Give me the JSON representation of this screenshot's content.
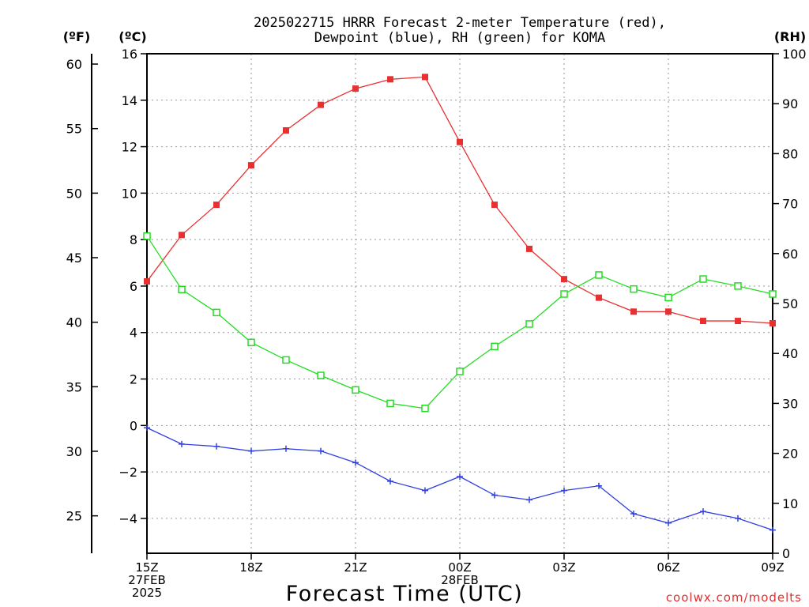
{
  "chart_data": {
    "type": "line",
    "title_lines": [
      "2025022715 HRRR Forecast 2-meter Temperature (red),",
      "Dewpoint (blue), RH (green) for KOMA"
    ],
    "xlabel": "Forecast Time (UTC)",
    "unit_labels": {
      "fahrenheit": "(ºF)",
      "celsius": "(ºC)",
      "rh": "(RH)"
    },
    "credit": "coolwx.com/modelts",
    "x_hours": [
      0,
      1,
      2,
      3,
      4,
      5,
      6,
      7,
      8,
      9,
      10,
      11,
      12,
      13,
      14,
      15,
      16,
      17,
      18
    ],
    "x_ticks": [
      {
        "hour": 0,
        "lines": [
          "15Z",
          "27FEB",
          "2025"
        ]
      },
      {
        "hour": 3,
        "lines": [
          "18Z"
        ]
      },
      {
        "hour": 6,
        "lines": [
          "21Z"
        ]
      },
      {
        "hour": 9,
        "lines": [
          "00Z",
          "28FEB"
        ]
      },
      {
        "hour": 12,
        "lines": [
          "03Z"
        ]
      },
      {
        "hour": 15,
        "lines": [
          "06Z"
        ]
      },
      {
        "hour": 18,
        "lines": [
          "09Z"
        ]
      }
    ],
    "xlim": [
      0,
      18
    ],
    "celsius_axis": {
      "ylim": [
        -5.5,
        16
      ],
      "ticks": [
        16,
        14,
        12,
        10,
        8,
        6,
        4,
        2,
        0,
        -2,
        -4
      ]
    },
    "fahrenheit_axis": {
      "ticks": [
        60,
        55,
        50,
        45,
        40,
        35,
        30,
        25
      ]
    },
    "rh_axis": {
      "ylim": [
        0,
        100
      ],
      "ticks": [
        100,
        90,
        80,
        70,
        60,
        50,
        40,
        30,
        20,
        10,
        0
      ]
    },
    "grid": true,
    "series": [
      {
        "name": "Temperature",
        "color": "#e83030",
        "marker": "filled-square",
        "axis": "celsius",
        "values": [
          6.2,
          8.2,
          9.5,
          11.2,
          12.7,
          13.8,
          14.5,
          14.9,
          15.0,
          12.2,
          9.5,
          7.6,
          6.3,
          5.5,
          4.9,
          4.9,
          4.5,
          4.5,
          4.4
        ]
      },
      {
        "name": "Dewpoint",
        "color": "#3040e0",
        "marker": "plus",
        "axis": "celsius",
        "values": [
          -0.1,
          -0.8,
          -0.9,
          -1.1,
          -1.0,
          -1.1,
          -1.6,
          -2.4,
          -2.8,
          -2.2,
          -3.0,
          -3.2,
          -2.8,
          -2.6,
          -3.8,
          -4.2,
          -3.7,
          -4.0,
          -4.5
        ]
      },
      {
        "name": "RH",
        "color": "#22dd22",
        "marker": "open-square",
        "axis": "rh",
        "values": [
          63.5,
          52.8,
          48.2,
          42.2,
          38.7,
          35.6,
          32.7,
          30.0,
          29.0,
          36.4,
          41.4,
          45.9,
          51.9,
          55.7,
          52.9,
          51.2,
          54.9,
          53.5,
          51.9
        ]
      }
    ]
  }
}
